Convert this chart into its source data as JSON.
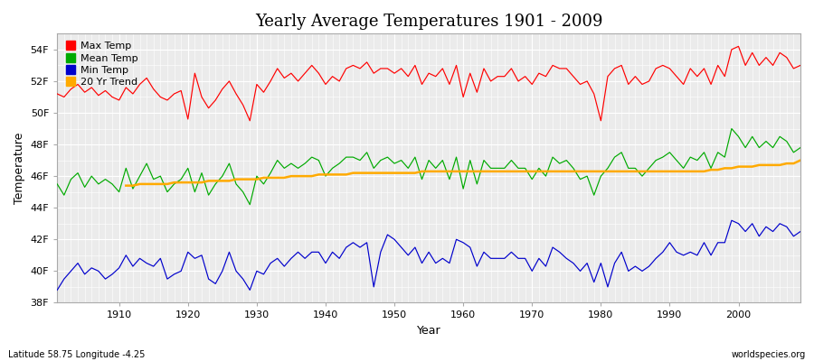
{
  "title": "Yearly Average Temperatures 1901 - 2009",
  "xlabel": "Year",
  "ylabel": "Temperature",
  "bottom_left": "Latitude 58.75 Longitude -4.25",
  "bottom_right": "worldspecies.org",
  "ylim_bottom": 38,
  "ylim_top": 55,
  "yticks": [
    38,
    40,
    42,
    44,
    46,
    48,
    50,
    52,
    54
  ],
  "ytick_labels": [
    "38F",
    "40F",
    "42F",
    "44F",
    "46F",
    "48F",
    "50F",
    "52F",
    "54F"
  ],
  "xlim_left": 1901,
  "xlim_right": 2009,
  "xticks": [
    1910,
    1920,
    1930,
    1940,
    1950,
    1960,
    1970,
    1980,
    1990,
    2000
  ],
  "bg_color": "#ffffff",
  "plot_bg_color": "#ebebeb",
  "grid_color": "#ffffff",
  "max_color": "#ff0000",
  "mean_color": "#00aa00",
  "min_color": "#0000cc",
  "trend_color": "#ffaa00",
  "years": [
    1901,
    1902,
    1903,
    1904,
    1905,
    1906,
    1907,
    1908,
    1909,
    1910,
    1911,
    1912,
    1913,
    1914,
    1915,
    1916,
    1917,
    1918,
    1919,
    1920,
    1921,
    1922,
    1923,
    1924,
    1925,
    1926,
    1927,
    1928,
    1929,
    1930,
    1931,
    1932,
    1933,
    1934,
    1935,
    1936,
    1937,
    1938,
    1939,
    1940,
    1941,
    1942,
    1943,
    1944,
    1945,
    1946,
    1947,
    1948,
    1949,
    1950,
    1951,
    1952,
    1953,
    1954,
    1955,
    1956,
    1957,
    1958,
    1959,
    1960,
    1961,
    1962,
    1963,
    1964,
    1965,
    1966,
    1967,
    1968,
    1969,
    1970,
    1971,
    1972,
    1973,
    1974,
    1975,
    1976,
    1977,
    1978,
    1979,
    1980,
    1981,
    1982,
    1983,
    1984,
    1985,
    1986,
    1987,
    1988,
    1989,
    1990,
    1991,
    1992,
    1993,
    1994,
    1995,
    1996,
    1997,
    1998,
    1999,
    2000,
    2001,
    2002,
    2003,
    2004,
    2005,
    2006,
    2007,
    2008,
    2009
  ],
  "max_temp": [
    51.2,
    51.0,
    51.5,
    51.8,
    51.3,
    51.6,
    51.1,
    51.4,
    51.0,
    50.8,
    51.6,
    51.2,
    51.8,
    52.2,
    51.5,
    51.0,
    50.8,
    51.2,
    51.4,
    49.6,
    52.5,
    51.0,
    50.3,
    50.8,
    51.5,
    52.0,
    51.2,
    50.5,
    49.5,
    51.8,
    51.3,
    52.0,
    52.8,
    52.2,
    52.5,
    52.0,
    52.5,
    53.0,
    52.5,
    51.8,
    52.3,
    52.0,
    52.8,
    53.0,
    52.8,
    53.2,
    52.5,
    52.8,
    52.8,
    52.5,
    52.8,
    52.3,
    53.0,
    51.8,
    52.5,
    52.3,
    52.8,
    51.8,
    53.0,
    51.0,
    52.5,
    51.3,
    52.8,
    52.0,
    52.3,
    52.3,
    52.8,
    52.0,
    52.3,
    51.8,
    52.5,
    52.3,
    53.0,
    52.8,
    52.8,
    52.3,
    51.8,
    52.0,
    51.2,
    49.5,
    52.3,
    52.8,
    53.0,
    51.8,
    52.3,
    51.8,
    52.0,
    52.8,
    53.0,
    52.8,
    52.3,
    51.8,
    52.8,
    52.3,
    52.8,
    51.8,
    53.0,
    52.3,
    54.0,
    54.2,
    53.0,
    53.8,
    53.0,
    53.5,
    53.0,
    53.8,
    53.5,
    52.8,
    53.0
  ],
  "mean_temp": [
    45.5,
    44.8,
    45.8,
    46.2,
    45.3,
    46.0,
    45.5,
    45.8,
    45.5,
    45.0,
    46.5,
    45.2,
    46.0,
    46.8,
    45.8,
    46.0,
    45.0,
    45.5,
    45.8,
    46.5,
    45.0,
    46.2,
    44.8,
    45.5,
    46.0,
    46.8,
    45.5,
    45.0,
    44.2,
    46.0,
    45.5,
    46.2,
    47.0,
    46.5,
    46.8,
    46.5,
    46.8,
    47.2,
    47.0,
    46.0,
    46.5,
    46.8,
    47.2,
    47.2,
    47.0,
    47.5,
    46.5,
    47.0,
    47.2,
    46.8,
    47.0,
    46.5,
    47.2,
    45.8,
    47.0,
    46.5,
    47.0,
    45.8,
    47.2,
    45.2,
    47.0,
    45.5,
    47.0,
    46.5,
    46.5,
    46.5,
    47.0,
    46.5,
    46.5,
    45.8,
    46.5,
    46.0,
    47.2,
    46.8,
    47.0,
    46.5,
    45.8,
    46.0,
    44.8,
    46.0,
    46.5,
    47.2,
    47.5,
    46.5,
    46.5,
    46.0,
    46.5,
    47.0,
    47.2,
    47.5,
    47.0,
    46.5,
    47.2,
    47.0,
    47.5,
    46.5,
    47.5,
    47.2,
    49.0,
    48.5,
    47.8,
    48.5,
    47.8,
    48.2,
    47.8,
    48.5,
    48.2,
    47.5,
    47.8
  ],
  "min_temp": [
    38.8,
    39.5,
    40.0,
    40.5,
    39.8,
    40.2,
    40.0,
    39.5,
    39.8,
    40.2,
    41.0,
    40.3,
    40.8,
    40.5,
    40.3,
    40.8,
    39.5,
    39.8,
    40.0,
    41.2,
    40.8,
    41.0,
    39.5,
    39.2,
    40.0,
    41.2,
    40.0,
    39.5,
    38.8,
    40.0,
    39.8,
    40.5,
    40.8,
    40.3,
    40.8,
    41.2,
    40.8,
    41.2,
    41.2,
    40.5,
    41.2,
    40.8,
    41.5,
    41.8,
    41.5,
    41.8,
    39.0,
    41.2,
    42.3,
    42.0,
    41.5,
    41.0,
    41.5,
    40.5,
    41.2,
    40.5,
    40.8,
    40.5,
    42.0,
    41.8,
    41.5,
    40.3,
    41.2,
    40.8,
    40.8,
    40.8,
    41.2,
    40.8,
    40.8,
    40.0,
    40.8,
    40.3,
    41.5,
    41.2,
    40.8,
    40.5,
    40.0,
    40.5,
    39.3,
    40.5,
    39.0,
    40.5,
    41.2,
    40.0,
    40.3,
    40.0,
    40.3,
    40.8,
    41.2,
    41.8,
    41.2,
    41.0,
    41.2,
    41.0,
    41.8,
    41.0,
    41.8,
    41.8,
    43.2,
    43.0,
    42.5,
    43.0,
    42.2,
    42.8,
    42.5,
    43.0,
    42.8,
    42.2,
    42.5
  ],
  "trend_years": [
    1911,
    1912,
    1913,
    1914,
    1915,
    1916,
    1917,
    1918,
    1919,
    1920,
    1921,
    1922,
    1923,
    1924,
    1925,
    1926,
    1927,
    1928,
    1929,
    1930,
    1931,
    1932,
    1933,
    1934,
    1935,
    1936,
    1937,
    1938,
    1939,
    1940,
    1941,
    1942,
    1943,
    1944,
    1945,
    1946,
    1947,
    1948,
    1949,
    1950,
    1951,
    1952,
    1953,
    1954,
    1955,
    1956,
    1957,
    1958,
    1959,
    1960,
    1961,
    1962,
    1963,
    1964,
    1965,
    1966,
    1967,
    1968,
    1969,
    1970,
    1971,
    1972,
    1973,
    1974,
    1975,
    1976,
    1977,
    1978,
    1979,
    1980,
    1981,
    1982,
    1983,
    1984,
    1985,
    1986,
    1987,
    1988,
    1989,
    1990,
    1991,
    1992,
    1993,
    1994,
    1995,
    1996,
    1997,
    1998,
    1999,
    2000,
    2001,
    2002,
    2003,
    2004,
    2005,
    2006,
    2007,
    2008,
    2009
  ],
  "trend_vals": [
    45.4,
    45.4,
    45.5,
    45.5,
    45.5,
    45.5,
    45.5,
    45.6,
    45.6,
    45.6,
    45.6,
    45.6,
    45.7,
    45.7,
    45.7,
    45.7,
    45.8,
    45.8,
    45.8,
    45.8,
    45.9,
    45.9,
    45.9,
    45.9,
    46.0,
    46.0,
    46.0,
    46.0,
    46.1,
    46.1,
    46.1,
    46.1,
    46.1,
    46.2,
    46.2,
    46.2,
    46.2,
    46.2,
    46.2,
    46.2,
    46.2,
    46.2,
    46.2,
    46.3,
    46.3,
    46.3,
    46.3,
    46.3,
    46.3,
    46.3,
    46.3,
    46.3,
    46.3,
    46.3,
    46.3,
    46.3,
    46.3,
    46.3,
    46.3,
    46.3,
    46.3,
    46.3,
    46.3,
    46.3,
    46.3,
    46.3,
    46.3,
    46.3,
    46.3,
    46.3,
    46.3,
    46.3,
    46.3,
    46.3,
    46.3,
    46.3,
    46.3,
    46.3,
    46.3,
    46.3,
    46.3,
    46.3,
    46.3,
    46.3,
    46.3,
    46.4,
    46.4,
    46.5,
    46.5,
    46.6,
    46.6,
    46.6,
    46.7,
    46.7,
    46.7,
    46.7,
    46.8,
    46.8,
    47.0
  ]
}
